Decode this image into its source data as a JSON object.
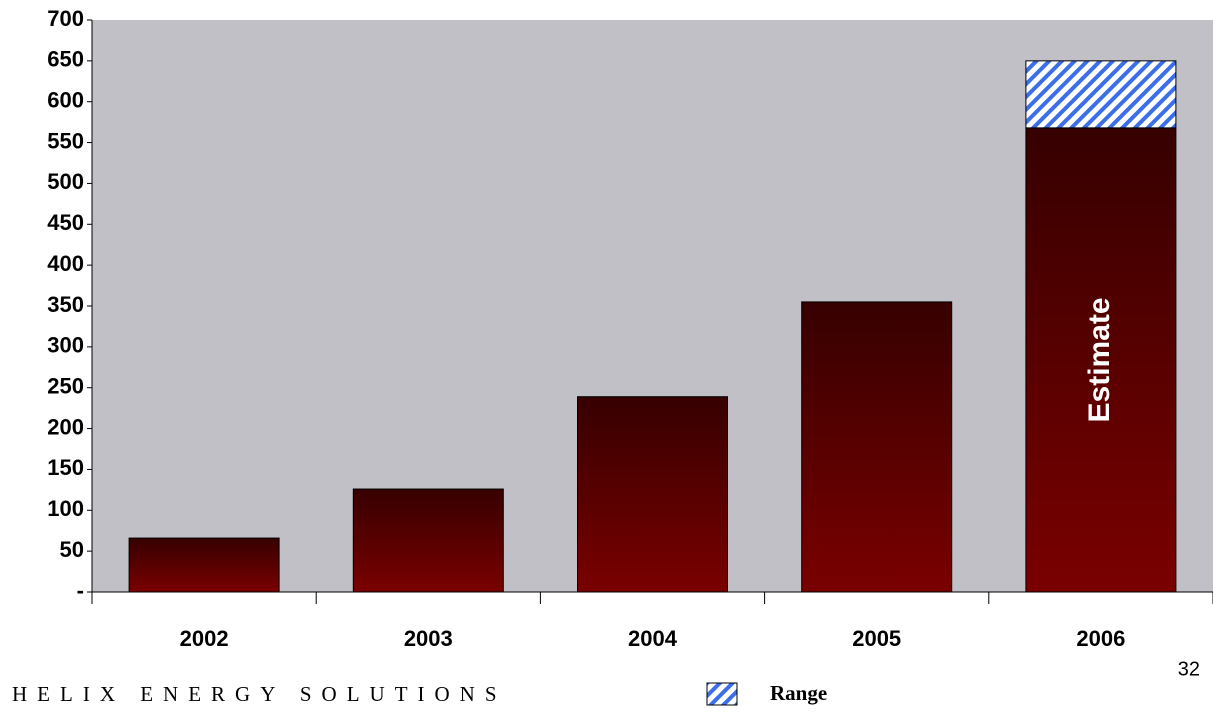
{
  "chart_data": {
    "type": "bar",
    "stacked": true,
    "categories": [
      "2002",
      "2003",
      "2004",
      "2005",
      "2006"
    ],
    "series": [
      {
        "color": "#6e0000",
        "values": [
          66,
          126,
          239,
          355,
          568
        ]
      },
      {
        "name": "Range",
        "color": "#3b6ee8",
        "values": [
          null,
          null,
          null,
          null,
          82
        ]
      }
    ],
    "annotation": "Estimate",
    "ylim": [
      0,
      700
    ],
    "yticks": [
      {
        "value": 0,
        "label": "-"
      },
      50,
      100,
      150,
      200,
      250,
      300,
      350,
      400,
      450,
      500,
      550,
      600,
      650,
      700
    ],
    "background": "#c0c0c6"
  },
  "footer": "HELIX ENERGY SOLUTIONS",
  "page_number": "32"
}
